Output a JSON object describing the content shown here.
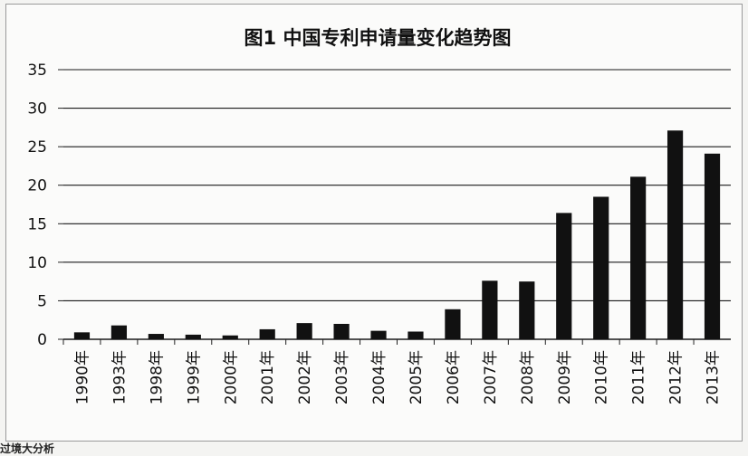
{
  "chart_data": {
    "type": "bar",
    "title": "图1 中国专利申请量变化趋势图",
    "xlabel": "",
    "ylabel": "",
    "ylim": [
      0,
      35
    ],
    "yticks": [
      0,
      5,
      10,
      15,
      20,
      25,
      30,
      35
    ],
    "grid": true,
    "legend": "none",
    "categories": [
      "1990年",
      "1993年",
      "1998年",
      "1999年",
      "2000年",
      "2001年",
      "2002年",
      "2003年",
      "2004年",
      "2005年",
      "2006年",
      "2007年",
      "2008年",
      "2009年",
      "2010年",
      "2011年",
      "2012年",
      "2013年"
    ],
    "values": [
      0.9,
      1.8,
      0.7,
      0.6,
      0.5,
      1.3,
      2.1,
      2.0,
      1.1,
      1.0,
      3.9,
      7.6,
      7.5,
      16.4,
      18.5,
      21.1,
      27.1,
      24.1
    ],
    "bar_color": "#111111",
    "grid_color": "#1a1a1a"
  },
  "footer_fragment": "过境大分析"
}
